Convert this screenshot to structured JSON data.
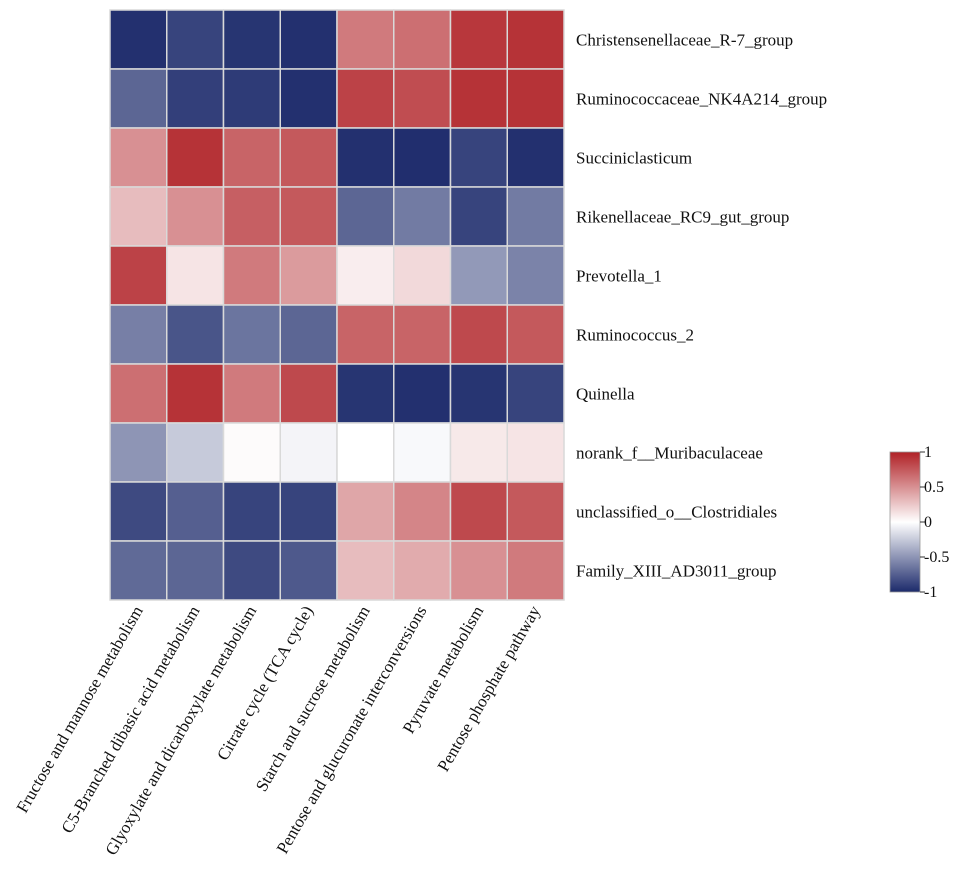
{
  "chart_data": {
    "type": "heatmap",
    "title": "",
    "rows": [
      "Christensenellaceae_R-7_group",
      "Ruminococcaceae_NK4A214_group",
      "Succiniclasticum",
      "Rikenellaceae_RC9_gut_group",
      "Prevotella_1",
      "Ruminococcus_2",
      "Quinella",
      "norank_f__Muribaculaceae",
      "unclassified_o__Clostridiales",
      "Family_XIII_AD3011_group"
    ],
    "columns": [
      "Fructose and mannose metabolism",
      "C5-Branched dibasic acid metabolism",
      "Glyoxylate and dicarboxylate metabolism",
      "Citrate cycle (TCA cycle)",
      "Starch and sucrose metabolism",
      "Pentose and glucuronate interconversions",
      "Pyruvate metabolism",
      "Pentose phosphate pathway"
    ],
    "values": [
      [
        -0.97,
        -0.88,
        -0.95,
        -0.97,
        0.6,
        0.65,
        0.9,
        0.92
      ],
      [
        -0.72,
        -0.9,
        -0.92,
        -0.97,
        0.85,
        0.8,
        0.92,
        0.92
      ],
      [
        0.5,
        0.92,
        0.7,
        0.75,
        -0.97,
        -0.98,
        -0.88,
        -0.97
      ],
      [
        0.3,
        0.5,
        0.72,
        0.75,
        -0.72,
        -0.62,
        -0.88,
        -0.62
      ],
      [
        0.85,
        0.12,
        0.6,
        0.45,
        0.08,
        0.17,
        -0.48,
        -0.58
      ],
      [
        -0.6,
        -0.8,
        -0.65,
        -0.72,
        0.7,
        0.7,
        0.82,
        0.75
      ],
      [
        0.65,
        0.92,
        0.6,
        0.82,
        -0.95,
        -0.97,
        -0.95,
        -0.88
      ],
      [
        -0.5,
        -0.25,
        0.02,
        -0.05,
        0.0,
        -0.03,
        0.1,
        0.12
      ],
      [
        -0.85,
        -0.75,
        -0.88,
        -0.88,
        0.4,
        0.55,
        0.82,
        0.75
      ],
      [
        -0.7,
        -0.72,
        -0.85,
        -0.78,
        0.3,
        0.38,
        0.5,
        0.6
      ]
    ],
    "colorscale": {
      "min": -1,
      "max": 1,
      "low_color": "#1c2a6b",
      "mid_color": "#ffffff",
      "high_color": "#b02126",
      "ticks": [
        1,
        0.5,
        0,
        -0.5,
        -1
      ]
    },
    "grid_color": "#d9d9d9",
    "legend_position": "right"
  }
}
